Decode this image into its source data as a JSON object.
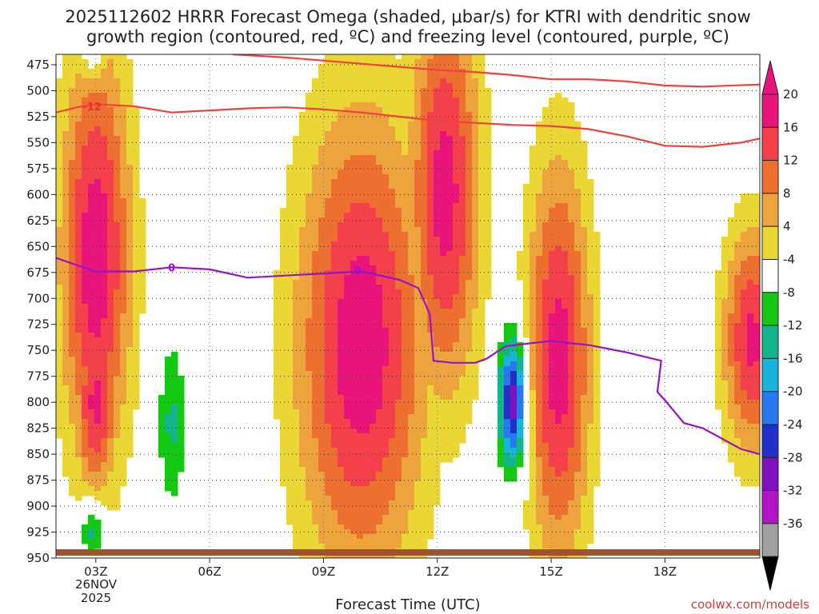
{
  "chart_data": {
    "type": "heatmap",
    "title": "2025112602 HRRR Forecast Omega (shaded, μbar/s) for KTRI with dendritic snow",
    "title_line2": "growth region (contoured, red, ºC) and freezing level (contoured, purple, ºC)",
    "xlabel": "Forecast Time (UTC)",
    "date_label_line1": "26NOV",
    "date_label_line2": "2025",
    "credit": "coolwx.com/models",
    "x_range_hours": [
      1.95,
      20.5
    ],
    "y_range_mb": [
      950,
      465
    ],
    "x_ticks": [
      {
        "hour": 3,
        "label": "03Z"
      },
      {
        "hour": 6,
        "label": "06Z"
      },
      {
        "hour": 9,
        "label": "09Z"
      },
      {
        "hour": 12,
        "label": "12Z"
      },
      {
        "hour": 15,
        "label": "15Z"
      },
      {
        "hour": 18,
        "label": "18Z"
      }
    ],
    "y_ticks": [
      475,
      500,
      525,
      550,
      575,
      600,
      625,
      650,
      675,
      700,
      725,
      750,
      775,
      800,
      825,
      850,
      875,
      900,
      925,
      950
    ],
    "colorbar": {
      "labels": [
        "20",
        "16",
        "12",
        "8",
        "4",
        "-4",
        "-8",
        "-12",
        "-16",
        "-20",
        "-24",
        "-28",
        "-32",
        "-36"
      ],
      "bins": [
        {
          "range": [
            20,
            24
          ],
          "color": "#e8147a"
        },
        {
          "range": [
            16,
            20
          ],
          "color": "#f4404a"
        },
        {
          "range": [
            12,
            16
          ],
          "color": "#ee7030"
        },
        {
          "range": [
            8,
            12
          ],
          "color": "#eda43c"
        },
        {
          "range": [
            4,
            8
          ],
          "color": "#ead634"
        },
        {
          "range": [
            -4,
            4
          ],
          "color": "#ffffff"
        },
        {
          "range": [
            -8,
            -4
          ],
          "color": "#14c814"
        },
        {
          "range": [
            -12,
            -8
          ],
          "color": "#14b48c"
        },
        {
          "range": [
            -16,
            -12
          ],
          "color": "#18b4dc"
        },
        {
          "range": [
            -20,
            -16
          ],
          "color": "#2878f0"
        },
        {
          "range": [
            -24,
            -20
          ],
          "color": "#2030c8"
        },
        {
          "range": [
            -28,
            -24
          ],
          "color": "#8010c0"
        },
        {
          "range": [
            -32,
            -28
          ],
          "color": "#b414c8"
        },
        {
          "range": [
            -36,
            -32
          ],
          "color": "#a0a0a0"
        }
      ]
    },
    "omega_features": [
      {
        "name": "upward-motion-max-03z",
        "center_hour": 3.0,
        "center_mb": 660,
        "hour_halfwidth": 1.2,
        "mb_halfwidth": 260,
        "peak": 23
      },
      {
        "name": "upward-motion-low-03z",
        "center_hour": 3.0,
        "center_mb": 800,
        "hour_halfwidth": 0.75,
        "mb_halfwidth": 115,
        "peak": 21
      },
      {
        "name": "upward-motion-max-10z",
        "center_hour": 10.0,
        "center_mb": 745,
        "hour_halfwidth": 2.2,
        "mb_halfwidth": 290,
        "peak": 23
      },
      {
        "name": "upward-motion-max-12z",
        "center_hour": 12.2,
        "center_mb": 600,
        "hour_halfwidth": 1.2,
        "mb_halfwidth": 250,
        "peak": 22
      },
      {
        "name": "upward-motion-max-15z",
        "center_hour": 15.2,
        "center_mb": 760,
        "hour_halfwidth": 1.1,
        "mb_halfwidth": 250,
        "peak": 22
      },
      {
        "name": "upward-motion-max-20z",
        "center_hour": 20.3,
        "center_mb": 740,
        "hour_halfwidth": 1.0,
        "mb_halfwidth": 140,
        "peak": 21
      },
      {
        "name": "downward-motion-min-14z",
        "center_hour": 14.0,
        "center_mb": 800,
        "hour_halfwidth": 0.45,
        "mb_halfwidth": 80,
        "peak": -29
      },
      {
        "name": "downward-motion-min-05z",
        "center_hour": 5.0,
        "center_mb": 820,
        "hour_halfwidth": 0.45,
        "mb_halfwidth": 100,
        "peak": -9
      },
      {
        "name": "downward-motion-min-03z-sfc",
        "center_hour": 2.9,
        "center_mb": 925,
        "hour_halfwidth": 0.4,
        "mb_halfwidth": 35,
        "peak": -13
      },
      {
        "name": "downward-motion-min-02z-top",
        "center_hour": 2.9,
        "center_mb": 470,
        "hour_halfwidth": 0.35,
        "mb_halfwidth": 25,
        "peak": -8
      }
    ],
    "dgz_isotherm": {
      "label": "-12",
      "label_position": {
        "hour": 2.9,
        "mb": 515
      },
      "upper_branch": [
        [
          6.6,
          465
        ],
        [
          8,
          468
        ],
        [
          10,
          474
        ],
        [
          12,
          480
        ],
        [
          13,
          482
        ],
        [
          14,
          485
        ],
        [
          15,
          489
        ],
        [
          16,
          489
        ],
        [
          17,
          491
        ],
        [
          18,
          495
        ],
        [
          19,
          496
        ],
        [
          20.5,
          494
        ]
      ],
      "lower_branch": [
        [
          1.95,
          521
        ],
        [
          2.5,
          516
        ],
        [
          3.0,
          513
        ],
        [
          4.0,
          515
        ],
        [
          5.0,
          521
        ],
        [
          6.0,
          519
        ],
        [
          7.0,
          517
        ],
        [
          8.0,
          516
        ],
        [
          9.0,
          518
        ],
        [
          10.0,
          521
        ],
        [
          11.0,
          525
        ],
        [
          12.0,
          529
        ],
        [
          13.0,
          531
        ],
        [
          14.0,
          533
        ],
        [
          15.0,
          534
        ],
        [
          16.0,
          537
        ],
        [
          17.0,
          544
        ],
        [
          18.0,
          553
        ],
        [
          19.0,
          554
        ],
        [
          20.0,
          550
        ],
        [
          20.5,
          546
        ]
      ]
    },
    "freezing_level": {
      "label": "0",
      "label_positions": [
        {
          "hour": 5.0,
          "mb": 670
        },
        {
          "hour": 9.9,
          "mb": 673
        }
      ],
      "points": [
        [
          1.95,
          661
        ],
        [
          2.5,
          668
        ],
        [
          3.0,
          674
        ],
        [
          4.0,
          674
        ],
        [
          5.0,
          670
        ],
        [
          6.0,
          672
        ],
        [
          7.0,
          680
        ],
        [
          8.0,
          678
        ],
        [
          9.0,
          676
        ],
        [
          10.0,
          674
        ],
        [
          11.0,
          682
        ],
        [
          11.5,
          690
        ],
        [
          11.8,
          715
        ],
        [
          11.9,
          760
        ],
        [
          12.4,
          762
        ],
        [
          13.0,
          762
        ],
        [
          13.3,
          758
        ],
        [
          13.8,
          746
        ],
        [
          14.5,
          743
        ],
        [
          15.0,
          741
        ],
        [
          15.5,
          743
        ],
        [
          16.0,
          745
        ],
        [
          17.0,
          752
        ],
        [
          17.9,
          760
        ],
        [
          17.8,
          790
        ],
        [
          18.0,
          798
        ],
        [
          18.5,
          820
        ],
        [
          19.0,
          825
        ],
        [
          20.0,
          845
        ],
        [
          20.5,
          850
        ]
      ]
    }
  }
}
